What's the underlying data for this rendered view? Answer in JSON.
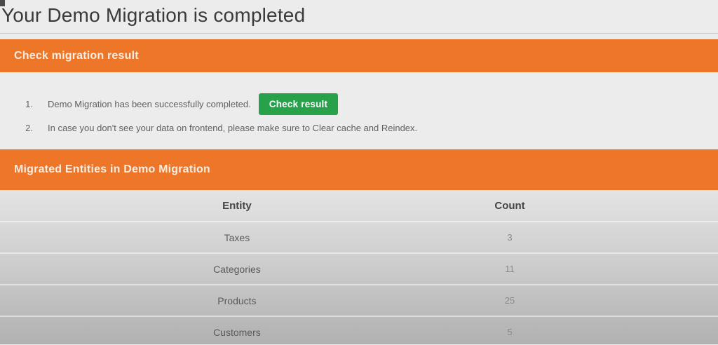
{
  "page": {
    "title": "Your Demo Migration is completed"
  },
  "check_result_section": {
    "header": "Check migration result",
    "items": [
      {
        "number": "1.",
        "text": "Demo Migration has been successfully completed.",
        "button_label": "Check result"
      },
      {
        "number": "2.",
        "text": "In case you don't see your data on frontend, please make sure to Clear cache and Reindex."
      }
    ]
  },
  "migrated_entities_section": {
    "header": "Migrated Entities in Demo Migration",
    "table": {
      "columns": {
        "entity": "Entity",
        "count": "Count"
      },
      "rows": [
        {
          "entity": "Taxes",
          "count": "3"
        },
        {
          "entity": "Categories",
          "count": "11"
        },
        {
          "entity": "Products",
          "count": "25"
        },
        {
          "entity": "Customers",
          "count": "5"
        }
      ]
    }
  },
  "colors": {
    "accent_orange": "#ee7629",
    "button_green": "#27a24b",
    "page_background": "#ececec"
  }
}
